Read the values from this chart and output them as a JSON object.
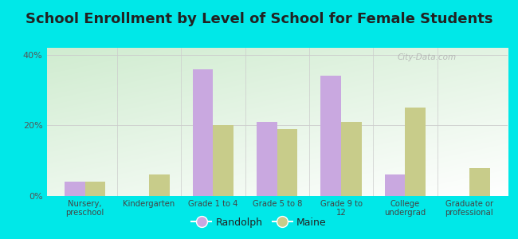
{
  "title": "School Enrollment by Level of School for Female Students",
  "categories": [
    "Nursery,\npreschool",
    "Kindergarten",
    "Grade 1 to 4",
    "Grade 5 to 8",
    "Grade 9 to\n12",
    "College\nundergrad",
    "Graduate or\nprofessional"
  ],
  "randolph": [
    4,
    0,
    36,
    21,
    34,
    6,
    0
  ],
  "maine": [
    4,
    6,
    20,
    19,
    21,
    25,
    8
  ],
  "randolph_color": "#c9a8e0",
  "maine_color": "#c8cc8a",
  "bg_outer": "#00e8e8",
  "bg_plot_grad_start": "#d8f0d8",
  "bg_plot_grad_end": "#f8fff8",
  "ylim": [
    0,
    42
  ],
  "yticks": [
    0,
    20,
    40
  ],
  "ytick_labels": [
    "0%",
    "20%",
    "40%"
  ],
  "bar_width": 0.32,
  "title_fontsize": 13,
  "legend_labels": [
    "Randolph",
    "Maine"
  ],
  "watermark": "City-Data.com"
}
